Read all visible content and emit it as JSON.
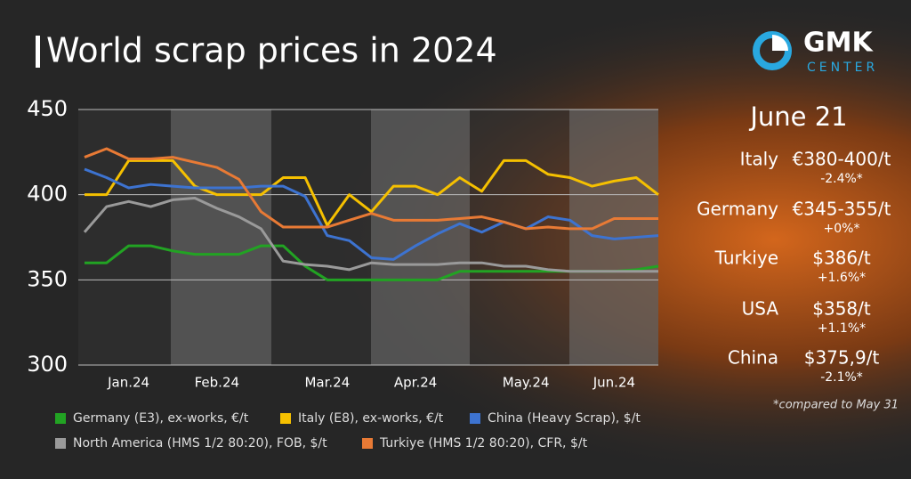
{
  "title": "World scrap prices in 2024",
  "logo": {
    "name": "GMK",
    "sub": "CENTER"
  },
  "chart_data": {
    "type": "line",
    "categories": [
      null,
      null,
      "Jan.24",
      null,
      null,
      null,
      "Feb.24",
      null,
      null,
      null,
      null,
      "Mar.24",
      null,
      null,
      null,
      "Apr.24",
      null,
      null,
      null,
      null,
      "May.24",
      null,
      null,
      null,
      "Jun.24",
      null,
      null
    ],
    "ylim": [
      300,
      450
    ],
    "yticks": [
      300,
      350,
      400,
      450
    ],
    "grid": true,
    "series": [
      {
        "name": "Germany (E3), ex-works, €/t",
        "color": "#22a323",
        "values": [
          360,
          360,
          370,
          370,
          367,
          365,
          365,
          365,
          370,
          370,
          358,
          350,
          350,
          350,
          350,
          350,
          350,
          355,
          355,
          355,
          355,
          355,
          355,
          355,
          355,
          356,
          358
        ]
      },
      {
        "name": "Italy (E8), ex-works, €/t",
        "color": "#f5c000",
        "values": [
          400,
          400,
          420,
          420,
          420,
          405,
          400,
          400,
          400,
          410,
          410,
          382,
          400,
          390,
          405,
          405,
          400,
          410,
          402,
          420,
          420,
          412,
          410,
          405,
          408,
          410,
          400
        ]
      },
      {
        "name": "China (Heavy Scrap), $/t",
        "color": "#3d73d0",
        "values": [
          415,
          410,
          404,
          406,
          405,
          404,
          404,
          404,
          405,
          405,
          399,
          376,
          373,
          363,
          362,
          370,
          377,
          383,
          378,
          384,
          380,
          387,
          385,
          376,
          374,
          375,
          376
        ]
      },
      {
        "name": "North America (HMS 1/2 80:20), FOB, $/t",
        "color": "#9a9a9a",
        "values": [
          378,
          393,
          396,
          393,
          397,
          398,
          392,
          387,
          380,
          361,
          359,
          358,
          356,
          360,
          359,
          359,
          359,
          360,
          360,
          358,
          358,
          356,
          355,
          355,
          355,
          355,
          355
        ]
      },
      {
        "name": "Turkiye (HMS 1/2 80:20), CFR, $/t",
        "color": "#e87a35",
        "values": [
          422,
          427,
          421,
          421,
          422,
          419,
          416,
          409,
          390,
          381,
          381,
          381,
          385,
          389,
          385,
          385,
          385,
          386,
          387,
          384,
          380,
          381,
          380,
          380,
          386,
          386,
          386
        ]
      }
    ]
  },
  "panel": {
    "date": "June 21",
    "rows": [
      {
        "country": "Italy",
        "price": "€380-400/t",
        "change": "-2.4%*"
      },
      {
        "country": "Germany",
        "price": "€345-355/t",
        "change": "+0%*"
      },
      {
        "country": "Turkiye",
        "price": "$386/t",
        "change": "+1.6%*"
      },
      {
        "country": "USA",
        "price": "$358/t",
        "change": "+1.1%*"
      },
      {
        "country": "China",
        "price": "$375,9/t",
        "change": "-2.1%*"
      }
    ],
    "note": "*compared to May 31"
  }
}
